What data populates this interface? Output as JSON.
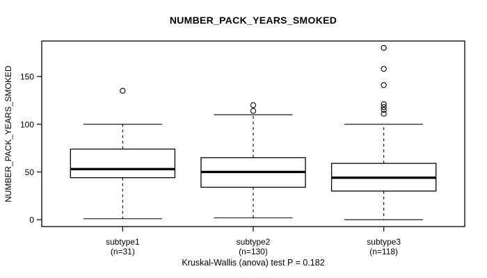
{
  "chart_data": {
    "type": "boxplot",
    "title": "NUMBER_PACK_YEARS_SMOKED",
    "ylabel": "NUMBER_PACK_YEARS_SMOKED",
    "xlabel": "",
    "caption": "Kruskal-Wallis (anova) test P = 0.182",
    "p_value": 0.182,
    "yticks": [
      0,
      50,
      100,
      150
    ],
    "ylim": [
      -7.2,
      187.2
    ],
    "xlim": [
      0.38,
      3.62
    ],
    "grid": false,
    "legend": null,
    "background": "#ffffff",
    "stroke_color": "#000000",
    "box_fill": "#ffffff",
    "box_width": 0.8,
    "cap_width": 0.4,
    "groups": [
      {
        "label": "subtype1",
        "sublabel": "(n=31)",
        "n": 31,
        "position": 1,
        "whisker_low": 1,
        "q1": 44,
        "median": 53,
        "q3": 74,
        "whisker_high": 100,
        "outliers": [
          135
        ]
      },
      {
        "label": "subtype2",
        "sublabel": "(n=130)",
        "n": 130,
        "position": 2,
        "whisker_low": 2,
        "q1": 34,
        "median": 50,
        "q3": 65,
        "whisker_high": 110,
        "outliers": [
          114,
          120
        ]
      },
      {
        "label": "subtype3",
        "sublabel": "(n=118)",
        "n": 118,
        "position": 3,
        "whisker_low": 0,
        "q1": 30,
        "median": 44,
        "q3": 59,
        "whisker_high": 100,
        "outliers": [
          111,
          115,
          118,
          121,
          141,
          158,
          180
        ]
      }
    ]
  }
}
